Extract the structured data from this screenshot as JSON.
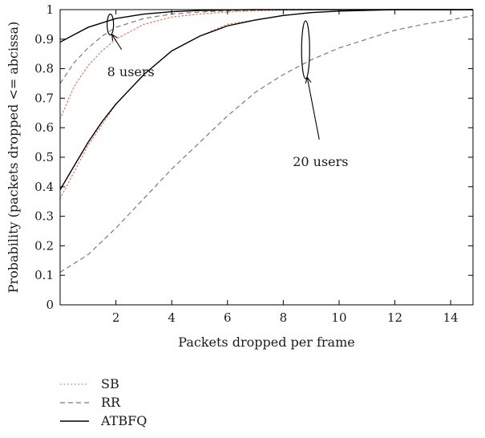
{
  "chart_data": {
    "type": "line",
    "title": "",
    "xlabel": "Packets dropped per frame",
    "ylabel": "Probability (packets dropped <= abcissa)",
    "xlim": [
      0,
      14.8
    ],
    "ylim": [
      0,
      1
    ],
    "x_ticks": [
      2,
      4,
      6,
      8,
      10,
      12,
      14
    ],
    "y_ticks": [
      0,
      0.1,
      0.2,
      0.3,
      0.4,
      0.5,
      0.6,
      0.7,
      0.8,
      0.9,
      1
    ],
    "x_tick_labels": [
      "2",
      "4",
      "6",
      "8",
      "10",
      "12",
      "14"
    ],
    "y_tick_labels": [
      "0",
      "0.1",
      "0.2",
      "0.3",
      "0.4",
      "0.5",
      "0.6",
      "0.7",
      "0.8",
      "0.9",
      "1"
    ],
    "grid": false,
    "legend_position": "bottom-left",
    "legend": [
      {
        "label": "SB",
        "style": "dotted",
        "color": "#e8734a"
      },
      {
        "label": "RR",
        "style": "dashed",
        "color": "#7a7a7a"
      },
      {
        "label": "ATBFQ",
        "style": "solid",
        "color": "#000000"
      }
    ],
    "annotations": [
      {
        "text": "8 users",
        "target_x": 1.8,
        "target_y": 0.93
      },
      {
        "text": "20 users",
        "target_x": 8.8,
        "target_y": 0.81
      }
    ],
    "series": [
      {
        "group": "8 users",
        "name": "SB",
        "style": "dotted",
        "color": "#e8734a",
        "x": [
          0,
          0.5,
          1,
          1.5,
          2,
          3,
          4,
          5,
          6,
          7,
          8,
          10,
          14.8
        ],
        "y": [
          0.63,
          0.74,
          0.81,
          0.86,
          0.9,
          0.95,
          0.975,
          0.985,
          0.992,
          0.996,
          0.998,
          1.0,
          1.0
        ]
      },
      {
        "group": "8 users",
        "name": "RR",
        "style": "dashed",
        "color": "#7a7a7a",
        "x": [
          0,
          0.5,
          1,
          1.5,
          2,
          3,
          4,
          5,
          6,
          7,
          8,
          10,
          14.8
        ],
        "y": [
          0.75,
          0.82,
          0.87,
          0.91,
          0.94,
          0.97,
          0.985,
          0.992,
          0.996,
          0.998,
          1.0,
          1.0,
          1.0
        ]
      },
      {
        "group": "8 users",
        "name": "ATBFQ",
        "style": "solid",
        "color": "#000000",
        "x": [
          0,
          0.5,
          1,
          1.5,
          2,
          3,
          4,
          5,
          6,
          7,
          8,
          10,
          14.8
        ],
        "y": [
          0.89,
          0.915,
          0.94,
          0.955,
          0.97,
          0.985,
          0.993,
          0.997,
          0.999,
          1.0,
          1.0,
          1.0,
          1.0
        ]
      },
      {
        "group": "20 users",
        "name": "SB",
        "style": "dotted",
        "color": "#e8734a",
        "x": [
          0,
          0.5,
          1,
          1.5,
          2,
          3,
          4,
          5,
          6,
          7,
          8,
          9,
          10,
          12,
          14.8
        ],
        "y": [
          0.36,
          0.45,
          0.54,
          0.61,
          0.68,
          0.78,
          0.86,
          0.91,
          0.95,
          0.965,
          0.98,
          0.99,
          0.995,
          1.0,
          1.0
        ]
      },
      {
        "group": "20 users",
        "name": "RR",
        "style": "dashed",
        "color": "#7a7a7a",
        "x": [
          0,
          1,
          2,
          3,
          4,
          5,
          6,
          7,
          8,
          9,
          10,
          11,
          12,
          13,
          14,
          14.8
        ],
        "y": [
          0.11,
          0.17,
          0.26,
          0.36,
          0.46,
          0.55,
          0.64,
          0.72,
          0.78,
          0.83,
          0.87,
          0.9,
          0.93,
          0.95,
          0.965,
          0.98
        ]
      },
      {
        "group": "20 users",
        "name": "ATBFQ",
        "style": "solid",
        "color": "#000000",
        "x": [
          0,
          0.5,
          1,
          1.5,
          2,
          3,
          4,
          5,
          6,
          7,
          8,
          9,
          10,
          12,
          14.8
        ],
        "y": [
          0.39,
          0.47,
          0.55,
          0.62,
          0.68,
          0.78,
          0.86,
          0.91,
          0.945,
          0.965,
          0.98,
          0.99,
          0.995,
          1.0,
          1.0
        ]
      }
    ]
  }
}
